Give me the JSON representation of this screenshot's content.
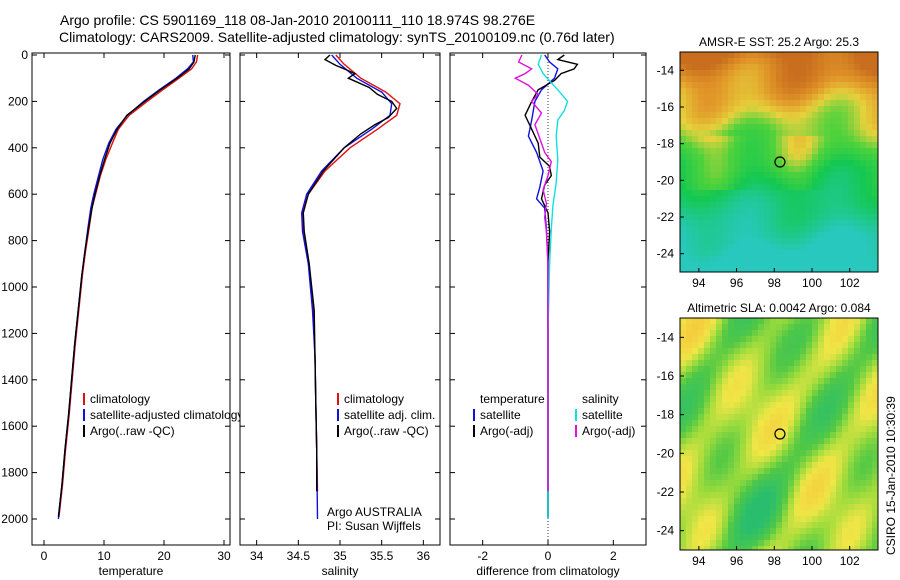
{
  "header": {
    "line1": "Argo profile: CS 5901169_118 08-Jan-2010 20100111_110 18.974S 98.276E",
    "line2": "Climatology: CARS2009. Satellite-adjusted climatology: synTS_20100109.nc (0.76d later)"
  },
  "colors": {
    "climatology": "#e01010",
    "satellite": "#1010e0",
    "argo": "#000000",
    "sat_salinity": "#10e0e0",
    "argo_salinity": "#e010e0"
  },
  "chart_data": [
    {
      "id": "temperature",
      "type": "line",
      "xlabel": "temperature",
      "ylabel": "",
      "xlim": [
        -2,
        31
      ],
      "ylim": [
        2050,
        0
      ],
      "xticks": [
        0,
        10,
        20,
        30
      ],
      "yticks": [
        0,
        200,
        400,
        600,
        800,
        1000,
        1200,
        1400,
        1600,
        1800,
        2000
      ],
      "legend": [
        "climatology",
        "satellite-adjusted climatology",
        "Argo(..raw -QC)"
      ],
      "series": [
        {
          "name": "climatology",
          "color": "climatology",
          "points": [
            [
              25.6,
              0
            ],
            [
              25.4,
              30
            ],
            [
              24.6,
              60
            ],
            [
              22.5,
              100
            ],
            [
              19.8,
              150
            ],
            [
              17.2,
              200
            ],
            [
              14.2,
              260
            ],
            [
              12.4,
              320
            ],
            [
              11.4,
              380
            ],
            [
              10.3,
              450
            ],
            [
              9.4,
              520
            ],
            [
              8.6,
              600
            ],
            [
              8.0,
              660
            ],
            [
              7.5,
              750
            ],
            [
              6.9,
              850
            ],
            [
              6.4,
              950
            ],
            [
              5.8,
              1100
            ],
            [
              5.2,
              1250
            ],
            [
              4.7,
              1400
            ],
            [
              4.2,
              1550
            ],
            [
              3.6,
              1700
            ],
            [
              3.1,
              1850
            ],
            [
              2.5,
              1990
            ]
          ]
        },
        {
          "name": "satellite",
          "color": "satellite",
          "points": [
            [
              24.8,
              0
            ],
            [
              24.9,
              30
            ],
            [
              23.9,
              60
            ],
            [
              22.0,
              100
            ],
            [
              19.2,
              150
            ],
            [
              16.6,
              200
            ],
            [
              13.9,
              260
            ],
            [
              12.0,
              320
            ],
            [
              10.8,
              380
            ],
            [
              9.8,
              450
            ],
            [
              9.1,
              520
            ],
            [
              8.3,
              600
            ],
            [
              7.8,
              660
            ],
            [
              7.3,
              750
            ],
            [
              6.8,
              850
            ],
            [
              6.3,
              950
            ],
            [
              5.7,
              1100
            ],
            [
              5.1,
              1250
            ],
            [
              4.6,
              1400
            ],
            [
              4.1,
              1550
            ],
            [
              3.5,
              1700
            ],
            [
              3.0,
              1850
            ],
            [
              2.4,
              2000
            ]
          ]
        },
        {
          "name": "argo",
          "color": "argo",
          "points": [
            [
              25.2,
              0
            ],
            [
              25.0,
              30
            ],
            [
              24.2,
              60
            ],
            [
              22.2,
              100
            ],
            [
              19.4,
              150
            ],
            [
              16.8,
              200
            ],
            [
              13.8,
              260
            ],
            [
              12.2,
              320
            ],
            [
              11.0,
              380
            ],
            [
              10.1,
              450
            ],
            [
              9.3,
              520
            ],
            [
              8.5,
              600
            ],
            [
              8.0,
              660
            ],
            [
              7.4,
              750
            ],
            [
              6.8,
              850
            ],
            [
              6.3,
              950
            ],
            [
              5.7,
              1100
            ],
            [
              5.1,
              1250
            ],
            [
              4.6,
              1400
            ],
            [
              4.1,
              1550
            ],
            [
              3.5,
              1700
            ],
            [
              3.0,
              1850
            ],
            [
              2.4,
              1990
            ]
          ]
        }
      ]
    },
    {
      "id": "salinity",
      "type": "line",
      "xlabel": "salinity",
      "xlim": [
        33.8,
        36.2
      ],
      "ylim": [
        2050,
        0
      ],
      "xticks": [
        34,
        34.5,
        35,
        35.5,
        36
      ],
      "legend": [
        "climatology",
        "satellite adj. clim.",
        "Argo(..raw -QC)"
      ],
      "annotation": [
        "Argo AUSTRALIA",
        "PI: Susan Wijffels"
      ],
      "series": [
        {
          "name": "climatology",
          "color": "climatology",
          "points": [
            [
              34.95,
              0
            ],
            [
              35.05,
              40
            ],
            [
              35.25,
              100
            ],
            [
              35.55,
              160
            ],
            [
              35.72,
              210
            ],
            [
              35.68,
              260
            ],
            [
              35.45,
              320
            ],
            [
              35.12,
              400
            ],
            [
              34.82,
              500
            ],
            [
              34.62,
              600
            ],
            [
              34.55,
              680
            ],
            [
              34.56,
              760
            ],
            [
              34.63,
              900
            ],
            [
              34.68,
              1100
            ],
            [
              34.7,
              1300
            ],
            [
              34.71,
              1500
            ],
            [
              34.72,
              1700
            ],
            [
              34.73,
              1880
            ]
          ]
        },
        {
          "name": "satellite",
          "color": "satellite",
          "points": [
            [
              34.9,
              0
            ],
            [
              35.0,
              40
            ],
            [
              35.2,
              100
            ],
            [
              35.5,
              160
            ],
            [
              35.62,
              210
            ],
            [
              35.6,
              260
            ],
            [
              35.38,
              320
            ],
            [
              35.05,
              400
            ],
            [
              34.78,
              500
            ],
            [
              34.6,
              600
            ],
            [
              34.54,
              680
            ],
            [
              34.55,
              760
            ],
            [
              34.62,
              900
            ],
            [
              34.67,
              1100
            ],
            [
              34.7,
              1300
            ],
            [
              34.71,
              1500
            ],
            [
              34.72,
              1700
            ],
            [
              34.73,
              2000
            ]
          ]
        },
        {
          "name": "argo",
          "color": "argo",
          "points": [
            [
              34.88,
              0
            ],
            [
              34.82,
              20
            ],
            [
              34.95,
              45
            ],
            [
              35.05,
              60
            ],
            [
              35.18,
              80
            ],
            [
              35.1,
              100
            ],
            [
              35.35,
              140
            ],
            [
              35.45,
              170
            ],
            [
              35.62,
              200
            ],
            [
              35.68,
              230
            ],
            [
              35.58,
              270
            ],
            [
              35.42,
              300
            ],
            [
              35.25,
              340
            ],
            [
              35.05,
              400
            ],
            [
              34.8,
              500
            ],
            [
              34.62,
              600
            ],
            [
              34.56,
              680
            ],
            [
              34.57,
              760
            ],
            [
              34.63,
              900
            ],
            [
              34.69,
              1100
            ],
            [
              34.7,
              1300
            ],
            [
              34.71,
              1500
            ],
            [
              34.72,
              1700
            ],
            [
              34.72,
              1880
            ]
          ]
        }
      ]
    },
    {
      "id": "difference",
      "type": "line",
      "xlabel": "difference from climatology",
      "xlim": [
        -3,
        3
      ],
      "ylim": [
        2050,
        0
      ],
      "xticks": [
        -2,
        0,
        2
      ],
      "legend_temperature": [
        "temperature",
        "satellite",
        "Argo(-adj)"
      ],
      "legend_salinity": [
        "salinity",
        "satellite",
        "Argo(-adj)"
      ],
      "series": [
        {
          "name": "temp-satellite",
          "color": "satellite",
          "points": [
            [
              -0.1,
              0
            ],
            [
              0.05,
              30
            ],
            [
              0.3,
              60
            ],
            [
              0.2,
              100
            ],
            [
              -0.2,
              150
            ],
            [
              -0.4,
              200
            ],
            [
              -0.5,
              280
            ],
            [
              -0.6,
              350
            ],
            [
              -0.35,
              420
            ],
            [
              -0.15,
              500
            ],
            [
              -0.25,
              570
            ],
            [
              -0.35,
              620
            ],
            [
              -0.1,
              660
            ],
            [
              -0.05,
              750
            ],
            [
              0.0,
              900
            ],
            [
              0.0,
              1200
            ],
            [
              0.0,
              1500
            ],
            [
              0.0,
              1800
            ],
            [
              0.0,
              2000
            ]
          ]
        },
        {
          "name": "temp-argo",
          "color": "argo",
          "points": [
            [
              0.5,
              0
            ],
            [
              0.3,
              20
            ],
            [
              0.9,
              40
            ],
            [
              0.8,
              60
            ],
            [
              0.4,
              80
            ],
            [
              0.2,
              110
            ],
            [
              -0.3,
              150
            ],
            [
              -0.5,
              200
            ],
            [
              -0.7,
              260
            ],
            [
              -0.5,
              320
            ],
            [
              -0.3,
              380
            ],
            [
              -0.25,
              440
            ],
            [
              0.05,
              480
            ],
            [
              0.1,
              520
            ],
            [
              -0.1,
              560
            ],
            [
              -0.2,
              620
            ],
            [
              0.0,
              680
            ],
            [
              0.05,
              760
            ],
            [
              0.0,
              900
            ],
            [
              0.0,
              1200
            ],
            [
              0.0,
              1500
            ],
            [
              0.0,
              1800
            ],
            [
              0.0,
              1990
            ]
          ]
        },
        {
          "name": "sal-satellite",
          "color": "sat_salinity",
          "points": [
            [
              -0.2,
              0
            ],
            [
              -0.3,
              40
            ],
            [
              -0.15,
              80
            ],
            [
              0.1,
              120
            ],
            [
              0.3,
              150
            ],
            [
              0.6,
              200
            ],
            [
              0.5,
              240
            ],
            [
              0.3,
              280
            ],
            [
              0.25,
              350
            ],
            [
              0.3,
              450
            ],
            [
              0.25,
              550
            ],
            [
              0.15,
              650
            ],
            [
              0.1,
              750
            ],
            [
              0.05,
              900
            ],
            [
              0.0,
              1200
            ],
            [
              0.0,
              1600
            ],
            [
              0.0,
              2000
            ]
          ]
        },
        {
          "name": "sal-argo",
          "color": "argo_salinity",
          "points": [
            [
              -0.8,
              0
            ],
            [
              -0.9,
              30
            ],
            [
              -0.5,
              60
            ],
            [
              -0.7,
              80
            ],
            [
              -1.0,
              100
            ],
            [
              -0.6,
              130
            ],
            [
              -0.3,
              170
            ],
            [
              -0.5,
              200
            ],
            [
              -0.2,
              250
            ],
            [
              -0.4,
              300
            ],
            [
              -0.25,
              360
            ],
            [
              -0.1,
              420
            ],
            [
              0.1,
              460
            ],
            [
              0.0,
              520
            ],
            [
              -0.15,
              580
            ],
            [
              -0.05,
              640
            ],
            [
              -0.1,
              700
            ],
            [
              -0.05,
              760
            ],
            [
              0.0,
              900
            ],
            [
              0.0,
              1200
            ],
            [
              0.0,
              1600
            ],
            [
              0.0,
              1880
            ]
          ]
        }
      ]
    }
  ],
  "maps": [
    {
      "id": "sst-map",
      "title": "AMSR-E SST: 25.2  Argo: 25.3",
      "type": "heatmap",
      "xlim": [
        93,
        103.5
      ],
      "ylim": [
        -25,
        -13
      ],
      "xticks": [
        94,
        96,
        98,
        100,
        102
      ],
      "yticks": [
        -14,
        -16,
        -18,
        -20,
        -22,
        -24
      ],
      "marker": [
        98.3,
        -19.0
      ],
      "palette": "sst"
    },
    {
      "id": "sla-map",
      "title": "Altimetric SLA: 0.0042  Argo: 0.084",
      "type": "heatmap",
      "xlim": [
        93,
        103.5
      ],
      "ylim": [
        -25,
        -13
      ],
      "xticks": [
        94,
        96,
        98,
        100,
        102
      ],
      "yticks": [
        -14,
        -16,
        -18,
        -20,
        -22,
        -24
      ],
      "marker": [
        98.3,
        -19.0
      ],
      "palette": "sla"
    }
  ],
  "footer": {
    "stamp": "CSIRO  15-Jan-2010 10:30:39"
  }
}
